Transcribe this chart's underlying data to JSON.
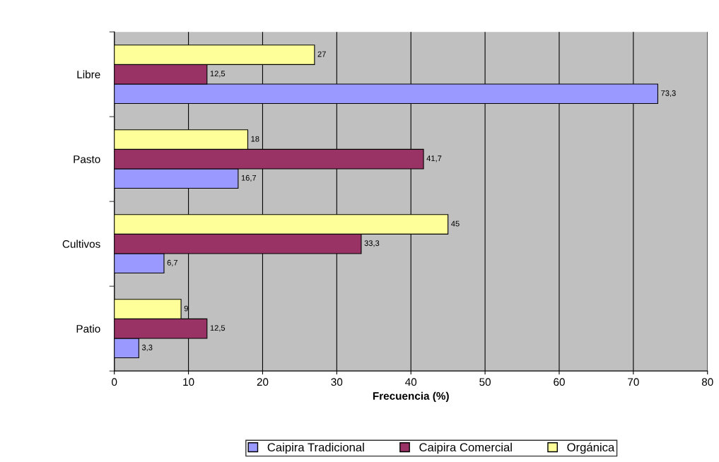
{
  "chart_data": {
    "type": "bar",
    "orientation": "horizontal",
    "categories": [
      "Libre",
      "Pasto",
      "Cultivos",
      "Patio"
    ],
    "series": [
      {
        "name": "Caipira Tradicional",
        "color": "#9999ff",
        "values": [
          73.3,
          16.7,
          6.7,
          3.3
        ],
        "value_labels": [
          "73,3",
          "16,7",
          "6,7",
          "3,3"
        ]
      },
      {
        "name": "Caipira Comercial",
        "color": "#993366",
        "values": [
          12.5,
          41.7,
          33.3,
          12.5
        ],
        "value_labels": [
          "12,5",
          "41,7",
          "33,3",
          "12,5"
        ]
      },
      {
        "name": "Orgánica",
        "color": "#ffff99",
        "values": [
          27,
          18,
          45,
          9
        ],
        "value_labels": [
          "27",
          "18",
          "45",
          "9"
        ]
      }
    ],
    "xlabel": "Frecuencia (%)",
    "xlim": [
      0,
      80
    ],
    "xticks": [
      0,
      10,
      20,
      30,
      40,
      50,
      60,
      70,
      80
    ],
    "grid": "x",
    "legend": "bottom"
  }
}
